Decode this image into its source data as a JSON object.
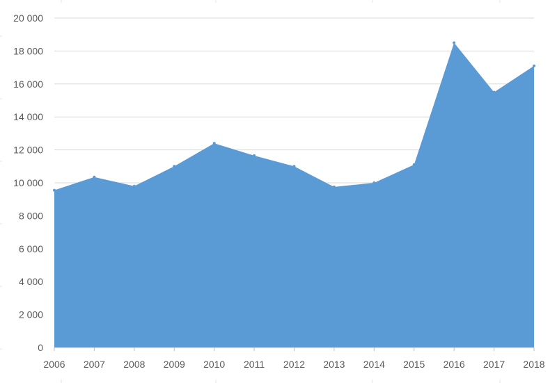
{
  "chart_data": {
    "type": "area",
    "title": "",
    "xlabel": "",
    "ylabel": "",
    "legend": "none",
    "grid": "horizontal",
    "ylim": [
      0,
      20000
    ],
    "y_ticks": [
      {
        "value": 0,
        "label": "0"
      },
      {
        "value": 2000,
        "label": "2 000"
      },
      {
        "value": 4000,
        "label": "4 000"
      },
      {
        "value": 6000,
        "label": "6 000"
      },
      {
        "value": 8000,
        "label": "8 000"
      },
      {
        "value": 10000,
        "label": "10 000"
      },
      {
        "value": 12000,
        "label": "12 000"
      },
      {
        "value": 14000,
        "label": "14 000"
      },
      {
        "value": 16000,
        "label": "16 000"
      },
      {
        "value": 18000,
        "label": "18 000"
      },
      {
        "value": 20000,
        "label": "20 000"
      }
    ],
    "categories": [
      "2006",
      "2007",
      "2008",
      "2009",
      "2010",
      "2011",
      "2012",
      "2013",
      "2014",
      "2015",
      "2016",
      "2017",
      "2018"
    ],
    "series": [
      {
        "color": "#5b9bd5",
        "values": [
          9550,
          10350,
          9800,
          11000,
          12400,
          11650,
          11000,
          9750,
          10000,
          11100,
          18500,
          15500,
          17100
        ]
      }
    ]
  }
}
